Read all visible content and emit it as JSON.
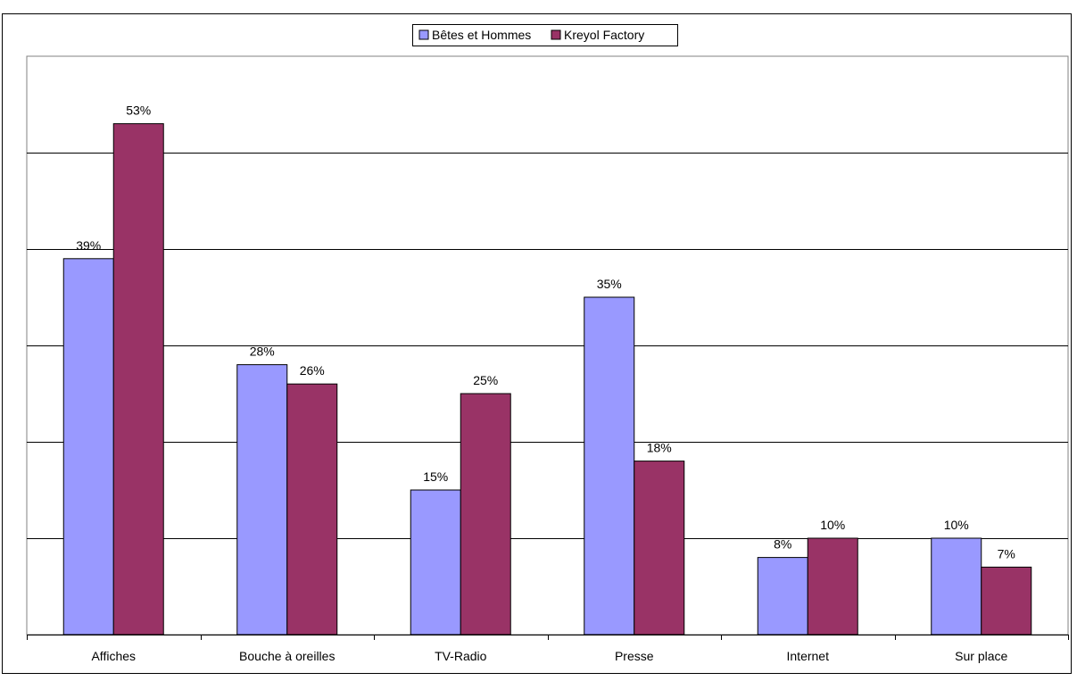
{
  "chart_data": {
    "type": "bar",
    "categories": [
      "Affiches",
      "Bouche à oreilles",
      "TV-Radio",
      "Presse",
      "Internet",
      "Sur place"
    ],
    "series": [
      {
        "name": "Bêtes et Hommes",
        "values": [
          39,
          28,
          15,
          35,
          8,
          10
        ],
        "labels": [
          "39%",
          "28%",
          "15%",
          "35%",
          "8%",
          "10%"
        ],
        "color": "#9999ff"
      },
      {
        "name": "Kreyol Factory",
        "values": [
          53,
          26,
          25,
          18,
          10,
          7
        ],
        "labels": [
          "53%",
          "26%",
          "25%",
          "18%",
          "10%",
          "7%"
        ],
        "color": "#993366"
      }
    ],
    "title": "",
    "xlabel": "",
    "ylabel": "",
    "ylim": [
      0,
      60
    ],
    "y_gridlines": [
      10,
      20,
      30,
      40,
      50,
      60
    ],
    "grid": true,
    "legend": "top-center"
  }
}
